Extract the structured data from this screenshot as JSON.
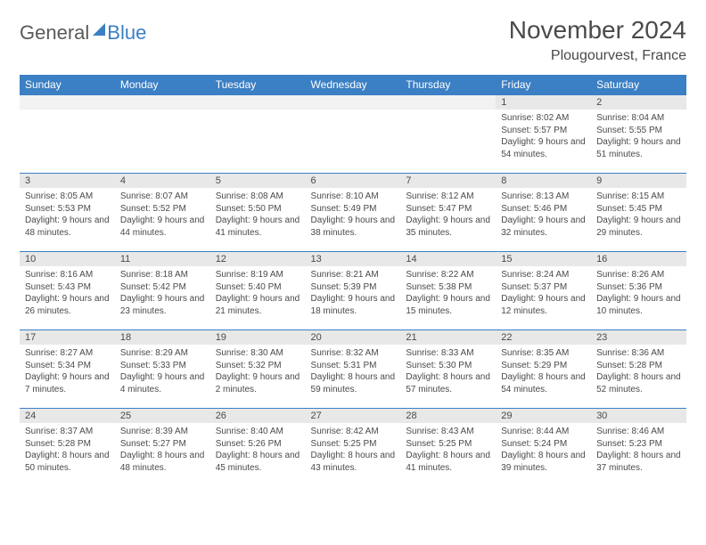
{
  "logo": {
    "part1": "General",
    "part2": "Blue"
  },
  "title": "November 2024",
  "location": "Plougourvest, France",
  "colors": {
    "header_bg": "#3b7fc4",
    "header_text": "#ffffff",
    "daynum_bg": "#e8e8e8",
    "border": "#3b7fc4",
    "text": "#4a4a4a",
    "page_bg": "#ffffff"
  },
  "typography": {
    "title_fontsize": 28,
    "location_fontsize": 16,
    "dayheader_fontsize": 12,
    "cell_fontsize": 10
  },
  "day_headers": [
    "Sunday",
    "Monday",
    "Tuesday",
    "Wednesday",
    "Thursday",
    "Friday",
    "Saturday"
  ],
  "weeks": [
    [
      null,
      null,
      null,
      null,
      null,
      {
        "n": "1",
        "sunrise": "8:02 AM",
        "sunset": "5:57 PM",
        "daylight": "9 hours and 54 minutes."
      },
      {
        "n": "2",
        "sunrise": "8:04 AM",
        "sunset": "5:55 PM",
        "daylight": "9 hours and 51 minutes."
      }
    ],
    [
      {
        "n": "3",
        "sunrise": "8:05 AM",
        "sunset": "5:53 PM",
        "daylight": "9 hours and 48 minutes."
      },
      {
        "n": "4",
        "sunrise": "8:07 AM",
        "sunset": "5:52 PM",
        "daylight": "9 hours and 44 minutes."
      },
      {
        "n": "5",
        "sunrise": "8:08 AM",
        "sunset": "5:50 PM",
        "daylight": "9 hours and 41 minutes."
      },
      {
        "n": "6",
        "sunrise": "8:10 AM",
        "sunset": "5:49 PM",
        "daylight": "9 hours and 38 minutes."
      },
      {
        "n": "7",
        "sunrise": "8:12 AM",
        "sunset": "5:47 PM",
        "daylight": "9 hours and 35 minutes."
      },
      {
        "n": "8",
        "sunrise": "8:13 AM",
        "sunset": "5:46 PM",
        "daylight": "9 hours and 32 minutes."
      },
      {
        "n": "9",
        "sunrise": "8:15 AM",
        "sunset": "5:45 PM",
        "daylight": "9 hours and 29 minutes."
      }
    ],
    [
      {
        "n": "10",
        "sunrise": "8:16 AM",
        "sunset": "5:43 PM",
        "daylight": "9 hours and 26 minutes."
      },
      {
        "n": "11",
        "sunrise": "8:18 AM",
        "sunset": "5:42 PM",
        "daylight": "9 hours and 23 minutes."
      },
      {
        "n": "12",
        "sunrise": "8:19 AM",
        "sunset": "5:40 PM",
        "daylight": "9 hours and 21 minutes."
      },
      {
        "n": "13",
        "sunrise": "8:21 AM",
        "sunset": "5:39 PM",
        "daylight": "9 hours and 18 minutes."
      },
      {
        "n": "14",
        "sunrise": "8:22 AM",
        "sunset": "5:38 PM",
        "daylight": "9 hours and 15 minutes."
      },
      {
        "n": "15",
        "sunrise": "8:24 AM",
        "sunset": "5:37 PM",
        "daylight": "9 hours and 12 minutes."
      },
      {
        "n": "16",
        "sunrise": "8:26 AM",
        "sunset": "5:36 PM",
        "daylight": "9 hours and 10 minutes."
      }
    ],
    [
      {
        "n": "17",
        "sunrise": "8:27 AM",
        "sunset": "5:34 PM",
        "daylight": "9 hours and 7 minutes."
      },
      {
        "n": "18",
        "sunrise": "8:29 AM",
        "sunset": "5:33 PM",
        "daylight": "9 hours and 4 minutes."
      },
      {
        "n": "19",
        "sunrise": "8:30 AM",
        "sunset": "5:32 PM",
        "daylight": "9 hours and 2 minutes."
      },
      {
        "n": "20",
        "sunrise": "8:32 AM",
        "sunset": "5:31 PM",
        "daylight": "8 hours and 59 minutes."
      },
      {
        "n": "21",
        "sunrise": "8:33 AM",
        "sunset": "5:30 PM",
        "daylight": "8 hours and 57 minutes."
      },
      {
        "n": "22",
        "sunrise": "8:35 AM",
        "sunset": "5:29 PM",
        "daylight": "8 hours and 54 minutes."
      },
      {
        "n": "23",
        "sunrise": "8:36 AM",
        "sunset": "5:28 PM",
        "daylight": "8 hours and 52 minutes."
      }
    ],
    [
      {
        "n": "24",
        "sunrise": "8:37 AM",
        "sunset": "5:28 PM",
        "daylight": "8 hours and 50 minutes."
      },
      {
        "n": "25",
        "sunrise": "8:39 AM",
        "sunset": "5:27 PM",
        "daylight": "8 hours and 48 minutes."
      },
      {
        "n": "26",
        "sunrise": "8:40 AM",
        "sunset": "5:26 PM",
        "daylight": "8 hours and 45 minutes."
      },
      {
        "n": "27",
        "sunrise": "8:42 AM",
        "sunset": "5:25 PM",
        "daylight": "8 hours and 43 minutes."
      },
      {
        "n": "28",
        "sunrise": "8:43 AM",
        "sunset": "5:25 PM",
        "daylight": "8 hours and 41 minutes."
      },
      {
        "n": "29",
        "sunrise": "8:44 AM",
        "sunset": "5:24 PM",
        "daylight": "8 hours and 39 minutes."
      },
      {
        "n": "30",
        "sunrise": "8:46 AM",
        "sunset": "5:23 PM",
        "daylight": "8 hours and 37 minutes."
      }
    ]
  ],
  "labels": {
    "sunrise": "Sunrise:",
    "sunset": "Sunset:",
    "daylight": "Daylight:"
  }
}
